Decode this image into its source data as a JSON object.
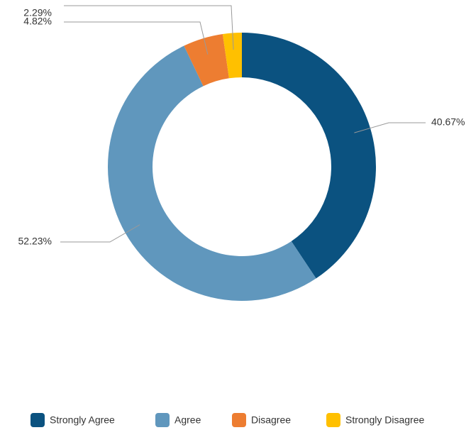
{
  "chart_data": {
    "type": "donut",
    "categories": [
      "Strongly Agree",
      "Agree",
      "Disagree",
      "Strongly Disagree"
    ],
    "values": [
      40.67,
      52.23,
      4.82,
      2.29
    ],
    "value_labels": [
      "40.67%",
      "52.23%",
      "4.82%",
      "2.29%"
    ],
    "colors": [
      "#0b5280",
      "#6097bd",
      "#ed7d31",
      "#ffc000"
    ],
    "legend": "bottom"
  }
}
